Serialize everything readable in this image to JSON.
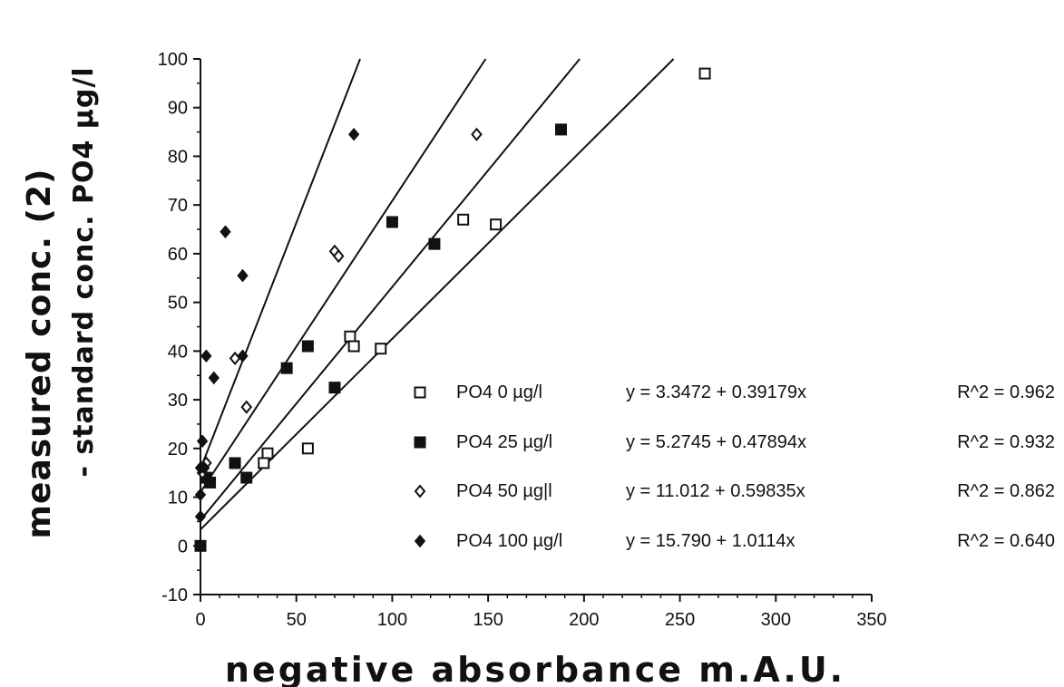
{
  "chart_data": {
    "type": "scatter",
    "xlabel": "negative absorbance m.A.U.",
    "ylabel_line1": "measured conc. (2)",
    "ylabel_line2": "- standard conc. PO4 µg/l",
    "xlim": [
      0,
      350
    ],
    "ylim": [
      -10,
      100
    ],
    "x_ticks": [
      0,
      50,
      100,
      150,
      200,
      250,
      300,
      350
    ],
    "y_ticks": [
      -10,
      0,
      10,
      20,
      30,
      40,
      50,
      60,
      70,
      80,
      90,
      100
    ],
    "grid": false,
    "legend_position": "bottom-right",
    "series": [
      {
        "name": "PO4 0 µg/l",
        "marker": "open-square",
        "equation": "y = 3.3472 + 0.39179x",
        "r2_label": "R^2 = 0.962",
        "intercept": 3.3472,
        "slope": 0.39179,
        "points": [
          [
            35,
            19
          ],
          [
            33,
            17
          ],
          [
            56,
            20
          ],
          [
            78,
            43
          ],
          [
            80,
            41
          ],
          [
            94,
            40.5
          ],
          [
            137,
            67
          ],
          [
            154,
            66
          ],
          [
            263,
            97
          ]
        ]
      },
      {
        "name": "PO4 25 µg/l",
        "marker": "filled-square",
        "equation": "y = 5.2745 + 0.47894x",
        "r2_label": "R^2 = 0.932",
        "intercept": 5.2745,
        "slope": 0.47894,
        "points": [
          [
            0,
            0
          ],
          [
            3,
            14
          ],
          [
            5,
            13
          ],
          [
            18,
            17
          ],
          [
            24,
            14
          ],
          [
            45,
            36.5
          ],
          [
            56,
            41
          ],
          [
            70,
            32.5
          ],
          [
            100,
            66.5
          ],
          [
            122,
            62
          ],
          [
            188,
            85.5
          ]
        ]
      },
      {
        "name": "PO4 50 µg|l",
        "marker": "open-diamond",
        "equation": "y = 11.012 + 0.59835x",
        "r2_label": "R^2 = 0.862",
        "intercept": 11.012,
        "slope": 0.59835,
        "points": [
          [
            1,
            15
          ],
          [
            3,
            17
          ],
          [
            18,
            38.5
          ],
          [
            24,
            28.5
          ],
          [
            70,
            60.5
          ],
          [
            72,
            59.5
          ],
          [
            144,
            84.5
          ]
        ]
      },
      {
        "name": "PO4 100 µg/l",
        "marker": "filled-diamond",
        "equation": "y = 15.790 + 1.0114x",
        "r2_label": "R^2 = 0.640",
        "intercept": 15.79,
        "slope": 1.0114,
        "points": [
          [
            0,
            6
          ],
          [
            0,
            10.5
          ],
          [
            0,
            16
          ],
          [
            1,
            21.5
          ],
          [
            2,
            16
          ],
          [
            3,
            39
          ],
          [
            7,
            34.5
          ],
          [
            13,
            64.5
          ],
          [
            22,
            39
          ],
          [
            22,
            55.5
          ],
          [
            80,
            84.5
          ]
        ]
      }
    ]
  }
}
